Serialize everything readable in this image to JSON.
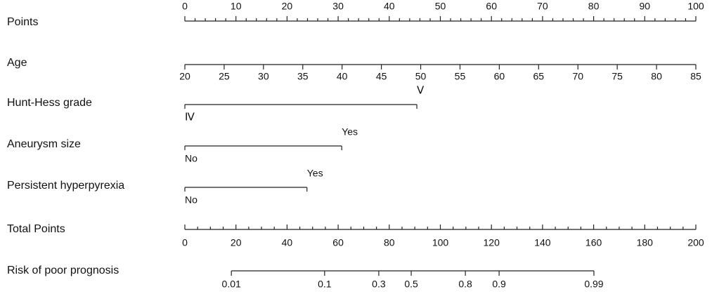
{
  "chart_data": {
    "type": "nomogram",
    "points_axis": {
      "label": "Points",
      "xlim": [
        0,
        100
      ],
      "xticks": [
        0,
        10,
        20,
        30,
        40,
        50,
        60,
        70,
        80,
        90,
        100
      ]
    },
    "variables": [
      {
        "name": "Age",
        "xlim": [
          20,
          85
        ],
        "xticks": [
          20,
          25,
          30,
          35,
          40,
          45,
          50,
          55,
          60,
          65,
          70,
          75,
          80,
          85
        ]
      },
      {
        "name": "Hunt-Hess grade",
        "levels": [
          "Ⅳ",
          "Ⅴ"
        ],
        "points": [
          0,
          45.4
        ]
      },
      {
        "name": "Aneurysm size",
        "levels": [
          "No",
          "Yes"
        ],
        "points": [
          0,
          30.7
        ]
      },
      {
        "name": "Persistent hyperpyrexia",
        "levels": [
          "No",
          "Yes"
        ],
        "points": [
          0,
          23.9
        ]
      }
    ],
    "total_points": {
      "label": "Total Points",
      "xlim": [
        0,
        200
      ],
      "xticks": [
        0,
        20,
        40,
        60,
        80,
        100,
        120,
        140,
        160,
        180,
        200
      ]
    },
    "risk": {
      "label": "Risk of poor prognosis",
      "ticks": [
        0.01,
        0.1,
        0.3,
        0.5,
        0.8,
        0.9,
        0.99
      ],
      "total_points": [
        18.2,
        54.7,
        75.9,
        88.6,
        109.8,
        123.0,
        160.1
      ]
    }
  }
}
